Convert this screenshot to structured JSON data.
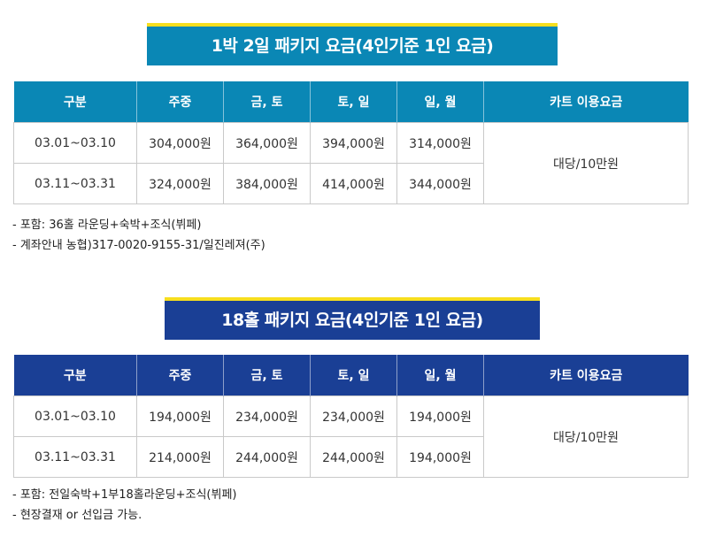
{
  "section1": {
    "title": "1박 2일 패키지 요금(4인기준 1인 요금)",
    "headers": [
      "구분",
      "주중",
      "금, 토",
      "토, 일",
      "일, 월",
      "카트 이용요금"
    ],
    "rows": [
      {
        "period": "03.01~03.10",
        "prices": [
          "304,000원",
          "364,000원",
          "394,000원",
          "314,000원"
        ]
      },
      {
        "period": "03.11~03.31",
        "prices": [
          "324,000원",
          "384,000원",
          "414,000원",
          "344,000원"
        ]
      }
    ],
    "cart_fee": "대당/10만원",
    "notes": [
      "- 포함: 36홀 라운딩+숙박+조식(뷔페)",
      "- 계좌안내 농협)317-0020-9155-31/일진레져(주)"
    ]
  },
  "section2": {
    "title": "18홀 패키지 요금(4인기준 1인 요금)",
    "headers": [
      "구분",
      "주중",
      "금, 토",
      "토, 일",
      "일, 월",
      "카트 이용요금"
    ],
    "rows": [
      {
        "period": "03.01~03.10",
        "prices": [
          "194,000원",
          "234,000원",
          "234,000원",
          "194,000원"
        ]
      },
      {
        "period": "03.11~03.31",
        "prices": [
          "214,000원",
          "244,000원",
          "244,000원",
          "194,000원"
        ]
      }
    ],
    "cart_fee": "대당/10만원",
    "notes": [
      "- 포함: 전일숙박+1부18홀라운딩+조식(뷔페)",
      "- 현장결재 or 선입금 가능."
    ]
  },
  "colors": {
    "section1_accent": "#0a87b5",
    "section2_accent": "#1a3f95",
    "banner_top_stripe": "#f7de1e"
  }
}
